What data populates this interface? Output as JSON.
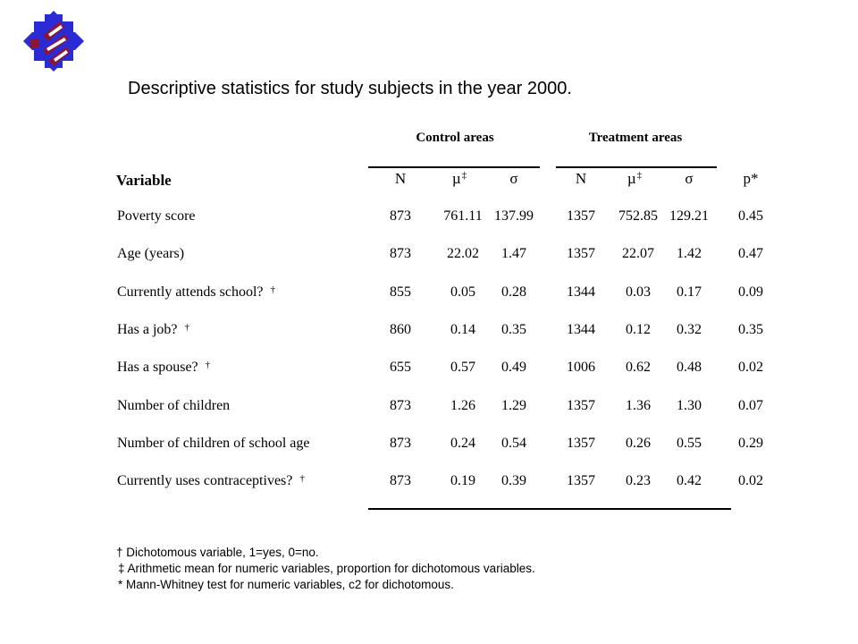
{
  "title": "Descriptive statistics for study subjects in the year 2000.",
  "table": {
    "group_headers": [
      "Control areas",
      "Treatment areas"
    ],
    "variable_header": "Variable",
    "column_headers": [
      "N",
      "µ",
      "σ",
      "N",
      "µ",
      "σ",
      "p*"
    ],
    "mu_marker": "‡",
    "rows": [
      {
        "label": "Poverty score",
        "marker": "",
        "values": [
          "873",
          "761.11",
          "137.99",
          "1357",
          "752.85",
          "129.21",
          "0.45"
        ]
      },
      {
        "label": "Age (years)",
        "marker": "",
        "values": [
          "873",
          "22.02",
          "1.47",
          "1357",
          "22.07",
          "1.42",
          "0.47"
        ]
      },
      {
        "label": "Currently attends school?",
        "marker": "†",
        "values": [
          "855",
          "0.05",
          "0.28",
          "1344",
          "0.03",
          "0.17",
          "0.09"
        ]
      },
      {
        "label": "Has a job?",
        "marker": "†",
        "values": [
          "860",
          "0.14",
          "0.35",
          "1344",
          "0.12",
          "0.32",
          "0.35"
        ]
      },
      {
        "label": "Has a spouse?",
        "marker": "†",
        "values": [
          "655",
          "0.57",
          "0.49",
          "1006",
          "0.62",
          "0.48",
          "0.02"
        ]
      },
      {
        "label": "Number of children",
        "marker": "",
        "values": [
          "873",
          "1.26",
          "1.29",
          "1357",
          "1.36",
          "1.30",
          "0.07"
        ]
      },
      {
        "label": "Number of children of school age",
        "marker": "",
        "values": [
          "873",
          "0.24",
          "0.54",
          "1357",
          "0.26",
          "0.55",
          "0.29"
        ]
      },
      {
        "label": "Currently uses contraceptives?",
        "marker": "†",
        "values": [
          "873",
          "0.19",
          "0.39",
          "1357",
          "0.23",
          "0.42",
          "0.02"
        ]
      }
    ]
  },
  "footnotes": [
    "† Dichotomous variable, 1=yes, 0=no.",
    "‡ Arithmetic mean for numeric variables, proportion for dichotomous variables.",
    "* Mann-Whitney test for numeric variables, c2 for dichotomous."
  ],
  "colors": {
    "logo_blue": "#2b2bd6",
    "logo_maroon": "#8a1538"
  }
}
